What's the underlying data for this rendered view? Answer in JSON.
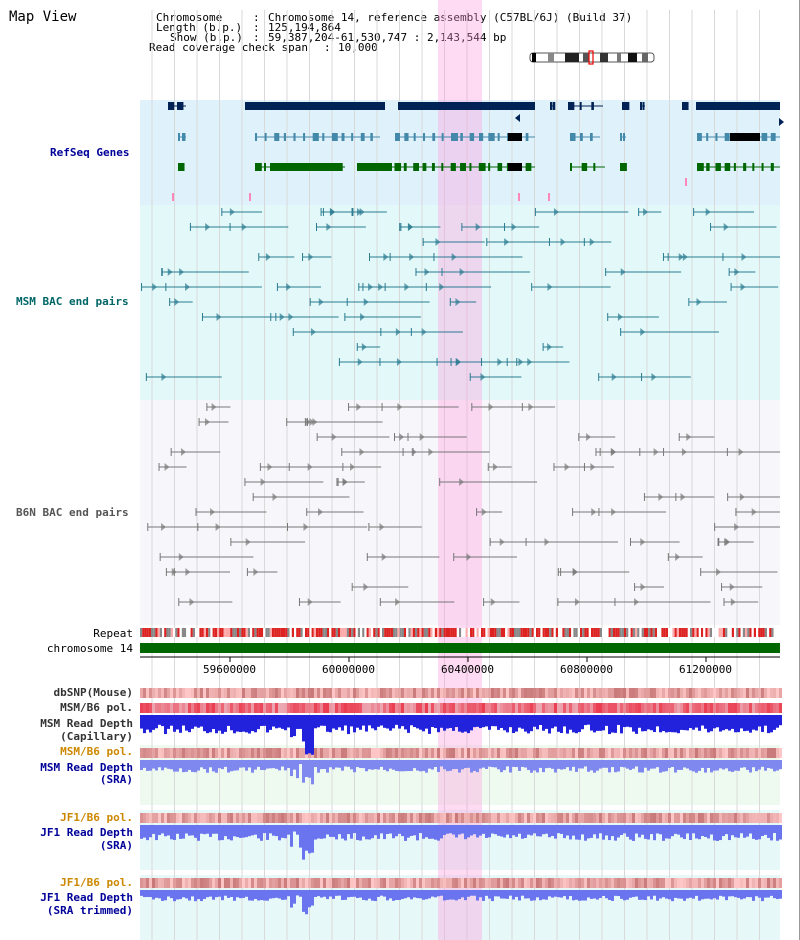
{
  "view_title": "Map View",
  "header": {
    "chromosome_label": "Chromosome",
    "chromosome_value": "Chromosome 14, reference assembly (C57BL/6J) (Build 37)",
    "length_label": "Length (b.p.)",
    "length_value": "125,194,864",
    "show_label": "Show (b.p.)",
    "show_value": "59,387,204-61,530,747 : 2,143,544 bp",
    "coverage_label": "Read coverage check span",
    "coverage_value": "10,000"
  },
  "tracks": {
    "refseq": "RefSeq Genes",
    "msm_bac": "MSM BAC end pairs",
    "b6n_bac": "B6N BAC end pairs",
    "repeat": "Repeat",
    "chromosome": "chromosome 14",
    "dbsnp": "dbSNP(Mouse)",
    "msm_b6_pol_1": "MSM/B6 pol.",
    "msm_read_depth_cap_1": "MSM Read Depth",
    "msm_read_depth_cap_2": "(Capillary)",
    "msm_b6_pol_2": "MSM/B6 pol.",
    "msm_read_depth_sra_1": "MSM Read Depth",
    "msm_read_depth_sra_2": "(SRA)",
    "jf1_b6_pol_1": "JF1/B6 pol.",
    "jf1_read_depth_sra_1": "JF1 Read Depth",
    "jf1_read_depth_sra_2": "(SRA)",
    "jf1_b6_pol_2": "JF1/B6 pol.",
    "jf1_read_depth_trim_1": "JF1 Read Depth",
    "jf1_read_depth_trim_2": "(SRA trimmed)"
  },
  "axis": {
    "ticks": [
      "59600000",
      "60000000",
      "60400000",
      "60800000",
      "61200000"
    ]
  },
  "colors": {
    "refseq_label": "#000099",
    "msm_label": "#006666",
    "b6n_label": "#555555",
    "pol_label_orange": "#cc8800",
    "depth_label_blue": "#000099",
    "gene_navy": "#002255",
    "gene_steel": "#4488aa",
    "gene_green": "#006600",
    "highlight": "#ff99dd",
    "chrom_bar": "#006600"
  }
}
